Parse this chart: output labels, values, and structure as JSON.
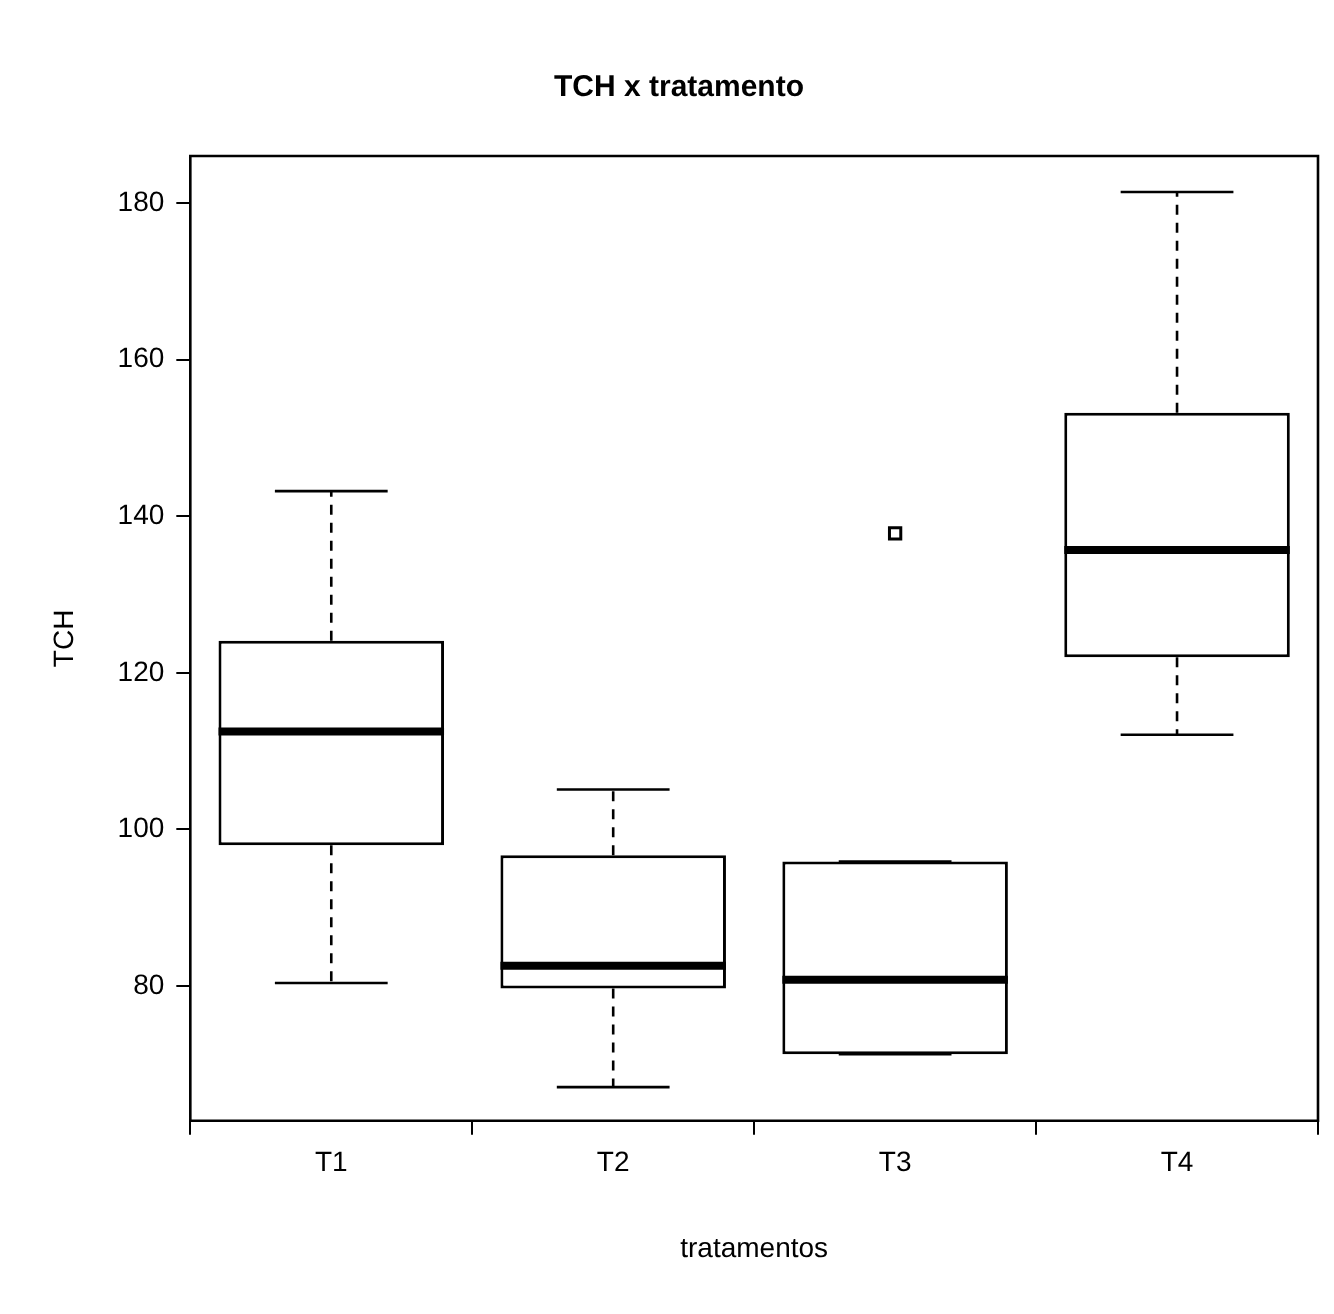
{
  "chart_data": {
    "type": "box",
    "title": "TCH x tratamento",
    "xlabel": "tratamentos",
    "ylabel": "TCH",
    "categories": [
      "T1",
      "T2",
      "T3",
      "T4"
    ],
    "boxes": [
      {
        "low": 80.4,
        "q1": 98.0,
        "median": 112.5,
        "q3": 124.1,
        "high": 143.2
      },
      {
        "low": 67.1,
        "q1": 79.7,
        "median": 82.6,
        "q3": 96.7,
        "high": 105.1
      },
      {
        "low": 71.3,
        "q1": 71.3,
        "median": 80.8,
        "q3": 95.9,
        "high": 95.9,
        "outliers": [
          137.8
        ]
      },
      {
        "low": 112.1,
        "q1": 122.0,
        "median": 135.7,
        "q3": 153.2,
        "high": 181.4
      }
    ],
    "color": "#000000",
    "ylim": [
      62.8,
      186
    ],
    "yticks": [
      80,
      100,
      120,
      140,
      160,
      180
    ],
    "grid": false,
    "legend": false,
    "marker": "square"
  }
}
